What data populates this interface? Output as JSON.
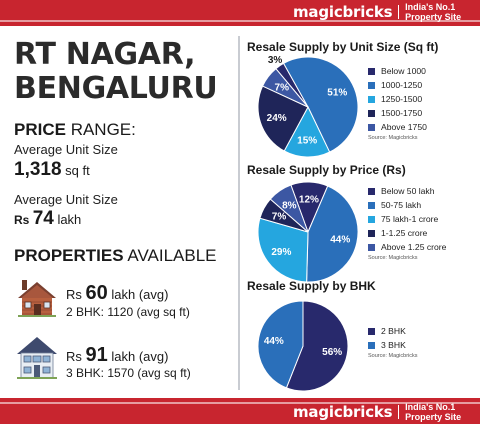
{
  "brand": {
    "logo": "magicbricks",
    "tagline": "India's No.1 Property Site"
  },
  "left": {
    "city_line1": "RT NAGAR,",
    "city_line2": "BENGALURU",
    "price_range_bold": "PRICE",
    "price_range_rest": " RANGE:",
    "avg_unit_size_label": "Average Unit Size",
    "avg_unit_size_value": "1,318",
    "avg_unit_size_unit": " sq ft",
    "avg_unit_price_label": "Average Unit Size",
    "avg_unit_price_currency": "Rs ",
    "avg_unit_price_value": "74",
    "avg_unit_price_unit": " lakh",
    "properties_bold": "PROPERTIES",
    "properties_rest": " AVAILABLE",
    "property1": {
      "currency": "Rs ",
      "value": "60",
      "suffix": " lakh (avg)",
      "sub": "2 BHK: 1120 (avg sq ft)"
    },
    "property2": {
      "currency": "Rs ",
      "value": "91",
      "suffix": " lakh (avg)",
      "sub": "3 BHK: 1570 (avg sq ft)"
    }
  },
  "colors": {
    "red": "#c8252f",
    "navy": "#28296c",
    "blue": "#2a6fba",
    "sky": "#25a6df",
    "dark_navy": "#1f2559",
    "slate": "#3c57a3"
  },
  "chart_data": [
    {
      "type": "pie",
      "title": "Resale Supply by Unit Size (Sq ft)",
      "categories": [
        "Below 1000",
        "1000-1250",
        "1250-1500",
        "1500-1750",
        "Above 1750"
      ],
      "values": [
        3,
        51,
        15,
        24,
        7
      ],
      "labels": [
        "3%",
        "51%",
        "15%",
        "24%",
        "7%"
      ],
      "colors": [
        "#28296c",
        "#2a6fba",
        "#25a6df",
        "#1f2559",
        "#3c57a3"
      ],
      "source": "Source: Magicbricks",
      "legend": "right"
    },
    {
      "type": "pie",
      "title": "Resale Supply by Price (Rs)",
      "categories": [
        "Below 50 lakh",
        "50-75 lakh",
        "75 lakh-1 crore",
        "1-1.25 crore",
        "Above 1.25 crore"
      ],
      "values": [
        12,
        44,
        29,
        7,
        8
      ],
      "labels": [
        "12%",
        "44%",
        "29%",
        "7%",
        "8%"
      ],
      "colors": [
        "#28296c",
        "#2a6fba",
        "#25a6df",
        "#1f2559",
        "#3c57a3"
      ],
      "source": "Source: Magicbricks",
      "legend": "right"
    },
    {
      "type": "pie",
      "title": "Resale Supply by BHK",
      "categories": [
        "2 BHK",
        "3 BHK"
      ],
      "values": [
        56,
        44
      ],
      "labels": [
        "56%",
        "44%"
      ],
      "colors": [
        "#28296c",
        "#2a6fba"
      ],
      "source": "Source: Magicbricks",
      "legend": "right"
    }
  ]
}
